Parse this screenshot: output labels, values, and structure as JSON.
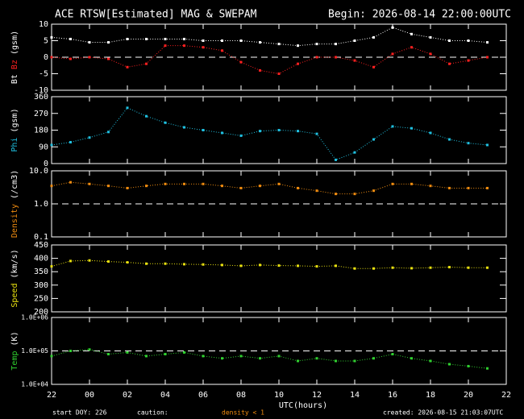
{
  "header": {
    "title": "ACE RTSW[Estimated] MAG & SWEPAM",
    "begin": "Begin: 2026-08-14 22:00:00UTC"
  },
  "footer": {
    "start": "start DOY: 226",
    "caution": "caution:",
    "caution_note": "density < 1",
    "created": "created: 2026-08-15 21:03:07UTC"
  },
  "chart_data": [
    {
      "type": "scatter",
      "units": "(gsm)",
      "log": false,
      "hline": 0,
      "xlim": [
        0,
        24
      ],
      "x": [
        0,
        1,
        2,
        3,
        4,
        5,
        6,
        7,
        8,
        9,
        10,
        11,
        12,
        13,
        14,
        15,
        16,
        17,
        18,
        19,
        20,
        21,
        22,
        23
      ],
      "ylim": [
        -10,
        10
      ],
      "yticks": [
        -10,
        -5,
        0,
        5,
        10
      ],
      "series": [
        {
          "name": "Bt",
          "color": "#ffffff",
          "values": [
            6,
            5.5,
            4.5,
            4.5,
            5.5,
            5.5,
            5.5,
            5.5,
            5,
            5,
            5,
            4.5,
            4,
            3.5,
            4,
            4,
            5,
            6,
            9,
            7,
            6,
            5,
            5,
            4.5
          ]
        },
        {
          "name": "Bz",
          "color": "#ff2020",
          "values": [
            0,
            -0.5,
            0,
            -0.5,
            -3,
            -2,
            3.5,
            3.5,
            3,
            2,
            -1.5,
            -4,
            -5,
            -2,
            0,
            0,
            -1,
            -3,
            1,
            3,
            1,
            -2,
            -1,
            0
          ]
        }
      ]
    },
    {
      "type": "scatter",
      "units": "(gsm)",
      "log": false,
      "xlim": [
        0,
        24
      ],
      "x": [
        0,
        1,
        2,
        3,
        4,
        5,
        6,
        7,
        8,
        9,
        10,
        11,
        12,
        13,
        14,
        15,
        16,
        17,
        18,
        19,
        20,
        21,
        22,
        23
      ],
      "ylim": [
        0,
        360
      ],
      "yticks": [
        0,
        90,
        180,
        270,
        360
      ],
      "series": [
        {
          "name": "Phi",
          "color": "#20c0e0",
          "values": [
            100,
            115,
            140,
            170,
            300,
            255,
            220,
            195,
            180,
            165,
            150,
            175,
            180,
            175,
            160,
            20,
            60,
            130,
            200,
            190,
            165,
            130,
            110,
            100
          ]
        }
      ]
    },
    {
      "type": "scatter",
      "units": "(/cm3)",
      "log": true,
      "hline": 1,
      "xlim": [
        0,
        24
      ],
      "x": [
        0,
        1,
        2,
        3,
        4,
        5,
        6,
        7,
        8,
        9,
        10,
        11,
        12,
        13,
        14,
        15,
        16,
        17,
        18,
        19,
        20,
        21,
        22,
        23
      ],
      "ylim": [
        0.1,
        10
      ],
      "yticks": [
        {
          "value": 0.1,
          "label": "0.1"
        },
        {
          "value": 1,
          "label": "1.0"
        },
        {
          "value": 10,
          "label": "10.0"
        }
      ],
      "series": [
        {
          "name": "Density",
          "color": "#f08c10",
          "values": [
            3.5,
            4.5,
            4,
            3.5,
            3,
            3.5,
            4,
            4,
            4,
            3.5,
            3,
            3.5,
            4,
            3,
            2.5,
            2,
            2,
            2.5,
            4,
            4,
            3.5,
            3,
            3,
            3
          ]
        }
      ]
    },
    {
      "type": "scatter",
      "units": "(km/s)",
      "log": false,
      "xlim": [
        0,
        24
      ],
      "x": [
        0,
        1,
        2,
        3,
        4,
        5,
        6,
        7,
        8,
        9,
        10,
        11,
        12,
        13,
        14,
        15,
        16,
        17,
        18,
        19,
        20,
        21,
        22,
        23
      ],
      "ylim": [
        200,
        450
      ],
      "yticks": [
        200,
        250,
        300,
        350,
        400,
        450
      ],
      "series": [
        {
          "name": "Speed",
          "color": "#e8e010",
          "values": [
            370,
            390,
            392,
            388,
            385,
            380,
            380,
            378,
            377,
            375,
            372,
            375,
            373,
            372,
            370,
            372,
            362,
            362,
            365,
            363,
            365,
            367,
            365,
            365
          ]
        }
      ]
    },
    {
      "type": "scatter",
      "units": "(K)",
      "log": true,
      "hline": 100000,
      "xlim": [
        0,
        24
      ],
      "x": [
        0,
        1,
        2,
        3,
        4,
        5,
        6,
        7,
        8,
        9,
        10,
        11,
        12,
        13,
        14,
        15,
        16,
        17,
        18,
        19,
        20,
        21,
        22,
        23
      ],
      "ylim": [
        10000,
        1000000
      ],
      "yticks": [
        {
          "value": 10000,
          "label": "1.0E+04"
        },
        {
          "value": 100000,
          "label": "1.0E+05"
        },
        {
          "value": 1000000,
          "label": "1.0E+06"
        }
      ],
      "xlabel": "UTC(hours)",
      "xticks": [
        {
          "value": 0,
          "label": "22"
        },
        {
          "value": 2,
          "label": "00"
        },
        {
          "value": 4,
          "label": "02"
        },
        {
          "value": 6,
          "label": "04"
        },
        {
          "value": 8,
          "label": "06"
        },
        {
          "value": 10,
          "label": "08"
        },
        {
          "value": 12,
          "label": "10"
        },
        {
          "value": 14,
          "label": "12"
        },
        {
          "value": 16,
          "label": "14"
        },
        {
          "value": 18,
          "label": "16"
        },
        {
          "value": 20,
          "label": "18"
        },
        {
          "value": 22,
          "label": "20"
        },
        {
          "value": 24,
          "label": "22"
        }
      ],
      "series": [
        {
          "name": "Temp",
          "color": "#30d030",
          "values": [
            70000,
            100000,
            110000,
            80000,
            90000,
            70000,
            80000,
            90000,
            70000,
            60000,
            70000,
            60000,
            70000,
            50000,
            60000,
            50000,
            50000,
            60000,
            80000,
            60000,
            50000,
            40000,
            35000,
            30000
          ]
        }
      ]
    }
  ]
}
